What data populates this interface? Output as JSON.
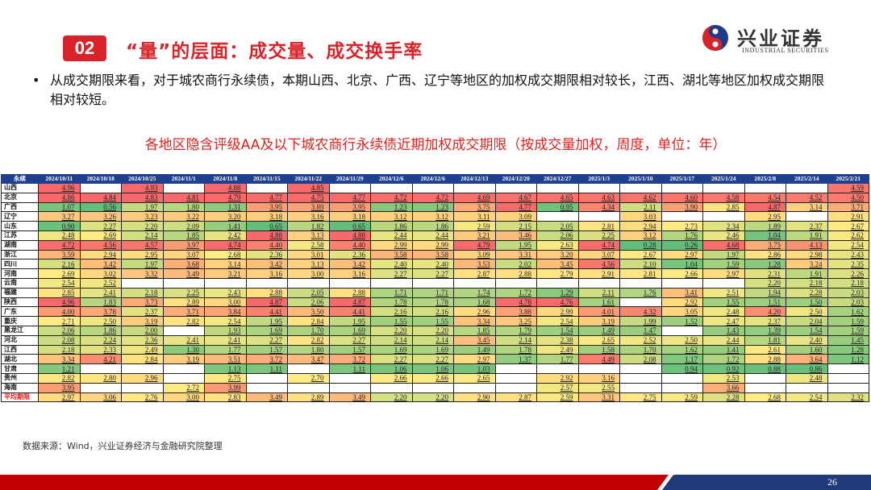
{
  "header": {
    "section_number": "02",
    "title": "“量”的层面：成交量、成交换手率",
    "logo_cn": "兴业证券",
    "logo_en": "INDUSTRIAL SECURITIES"
  },
  "bullet": {
    "marker": "•",
    "text": "从成交期限来看，对于城农商行永续债，本期山西、北京、广西、辽宁等地区的加权成交期限相对较长，江西、湖北等地区加权成交期限相对较短。"
  },
  "subtitle": "各地区隐含评级AA及以下城农商行永续债近期加权成交期限（按成交量加权，周度，单位：年）",
  "table": {
    "corner": "永续",
    "columns": [
      "2024/10/11",
      "2024/10/18",
      "2024/10/25",
      "2024/11/1",
      "2024/11/8",
      "2024/11/15",
      "2024/11/22",
      "2024/11/29",
      "2024/12/6",
      "2024/12/6",
      "2024/12/13",
      "2024/12/20",
      "2024/12/27",
      "2025/1/3",
      "2025/1/10",
      "2025/1/17",
      "2025/1/24",
      "2025/2/8",
      "2025/2/14",
      "2025/2/21"
    ],
    "rows": [
      {
        "region": "山西",
        "values": [
          "4.96",
          "",
          "4.93",
          "",
          "4.88",
          "",
          "4.85",
          "",
          "",
          "",
          "",
          "",
          "",
          "",
          "",
          "",
          "",
          "",
          "",
          "4.59"
        ]
      },
      {
        "region": "北京",
        "values": [
          "4.86",
          "4.84",
          "4.83",
          "4.81",
          "4.79",
          "4.77",
          "4.75",
          "4.77",
          "4.72",
          "4.72",
          "4.69",
          "4.67",
          "4.65",
          "4.63",
          "4.62",
          "4.60",
          "4.58",
          "4.54",
          "4.52",
          "4.50"
        ]
      },
      {
        "region": "广西",
        "values": [
          "1.07",
          "0.56",
          "1.97",
          "1.80",
          "1.31",
          "3.95",
          "3.89",
          "3.95",
          "1.23",
          "1.23",
          "3.75",
          "4.77",
          "0.95",
          "4.34",
          "2.11",
          "3.90",
          "2.85",
          "4.87",
          "3.14",
          "3.71"
        ]
      },
      {
        "region": "辽宁",
        "values": [
          "3.27",
          "3.26",
          "3.23",
          "3.22",
          "3.20",
          "3.18",
          "3.16",
          "3.18",
          "3.12",
          "3.12",
          "3.11",
          "3.09",
          "",
          "",
          "3.03",
          "",
          "",
          "2.95",
          "",
          "2.91"
        ]
      },
      {
        "region": "山东",
        "values": [
          "0.90",
          "2.27",
          "2.20",
          "2.09",
          "1.41",
          "0.65",
          "1.82",
          "0.65",
          "1.86",
          "1.86",
          "2.59",
          "2.15",
          "2.05",
          "2.81",
          "2.94",
          "2.73",
          "2.34",
          "1.89",
          "2.37",
          "2.67"
        ]
      },
      {
        "region": "江苏",
        "values": [
          "2.48",
          "2.69",
          "2.14",
          "1.85",
          "2.42",
          "4.88",
          "3.13",
          "4.88",
          "2.44",
          "2.44",
          "3.21",
          "3.46",
          "2.06",
          "2.25",
          "3.12",
          "1.76",
          "2.46",
          "1.04",
          "1.91",
          "2.62"
        ]
      },
      {
        "region": "湖南",
        "values": [
          "4.72",
          "4.56",
          "4.57",
          "3.97",
          "4.74",
          "4.40",
          "2.58",
          "4.40",
          "2.99",
          "2.99",
          "4.79",
          "1.95",
          "2.63",
          "4.74",
          "0.28",
          "0.26",
          "4.68",
          "3.75",
          "4.13",
          "2.54"
        ]
      },
      {
        "region": "浙江",
        "values": [
          "3.59",
          "2.94",
          "2.95",
          "3.07",
          "2.68",
          "2.36",
          "3.01",
          "2.36",
          "3.58",
          "3.58",
          "3.09",
          "3.31",
          "3.20",
          "3.07",
          "2.67",
          "2.97",
          "1.97",
          "2.86",
          "2.98",
          "2.43"
        ]
      },
      {
        "region": "四川",
        "values": [
          "2.16",
          "3.42",
          "1.97",
          "3.68",
          "3.14",
          "3.42",
          "3.13",
          "3.42",
          "2.40",
          "2.40",
          "3.53",
          "2.02",
          "3.45",
          "4.56",
          "2.10",
          "1.04",
          "1.59",
          "1.28",
          "3.24",
          "2.35"
        ]
      },
      {
        "region": "河南",
        "values": [
          "2.69",
          "3.02",
          "3.32",
          "3.49",
          "3.21",
          "3.16",
          "3.00",
          "3.16",
          "2.27",
          "2.27",
          "2.87",
          "2.88",
          "2.79",
          "2.91",
          "2.81",
          "2.66",
          "2.97",
          "2.31",
          "1.91",
          "2.26"
        ]
      },
      {
        "region": "云南",
        "values": [
          "2.54",
          "2.52",
          "",
          "",
          "",
          "",
          "",
          "",
          "",
          "",
          "",
          "",
          "",
          "",
          "",
          "",
          "",
          "2.20",
          "2.18",
          "2.18"
        ]
      },
      {
        "region": "福建",
        "values": [
          "2.85",
          "2.41",
          "2.18",
          "2.25",
          "2.43",
          "2.88",
          "2.05",
          "2.88",
          "1.71",
          "1.71",
          "1.74",
          "1.72",
          "1.29",
          "2.11",
          "1.76",
          "3.41",
          "2.51",
          "1.94",
          "2.28",
          "2.03"
        ]
      },
      {
        "region": "陕西",
        "values": [
          "4.96",
          "1.83",
          "3.73",
          "2.89",
          "3.00",
          "4.87",
          "2.06",
          "4.87",
          "1.78",
          "1.78",
          "1.68",
          "4.78",
          "4.76",
          "1.61",
          "",
          "2.92",
          "1.55",
          "1.51",
          "1.50",
          "2.03"
        ]
      },
      {
        "region": "广东",
        "values": [
          "4.00",
          "3.78",
          "2.37",
          "3.71",
          "3.84",
          "4.41",
          "3.50",
          "4.41",
          "2.16",
          "2.16",
          "2.96",
          "3.88",
          "2.99",
          "4.01",
          "4.32",
          "3.05",
          "2.48",
          "4.20",
          "2.50",
          "1.62"
        ]
      },
      {
        "region": "重庆",
        "values": [
          "2.71",
          "2.50",
          "3.19",
          "2.82",
          "2.54",
          "1.95",
          "2.84",
          "1.95",
          "1.55",
          "1.55",
          "3.34",
          "3.25",
          "2.54",
          "3.19",
          "1.99",
          "1.52",
          "2.47",
          "2.37",
          "2.04",
          "1.59"
        ]
      },
      {
        "region": "黑龙江",
        "values": [
          "2.06",
          "1.86",
          "2.00",
          "",
          "1.93",
          "1.69",
          "1.70",
          "1.69",
          "2.20",
          "2.20",
          "1.85",
          "1.79",
          "1.54",
          "1.49",
          "1.47",
          "",
          "1.43",
          "1.39",
          "1.54",
          "1.59"
        ]
      },
      {
        "region": "河北",
        "values": [
          "2.08",
          "2.24",
          "2.36",
          "2.41",
          "2.41",
          "2.27",
          "2.82",
          "2.27",
          "2.14",
          "2.14",
          "3.45",
          "2.14",
          "2.38",
          "2.65",
          "2.52",
          "2.50",
          "2.44",
          "1.81",
          "2.40",
          "1.45"
        ]
      },
      {
        "region": "江西",
        "values": [
          "2.18",
          "2.33",
          "2.49",
          "1.30",
          "1.77",
          "1.57",
          "1.80",
          "1.57",
          "1.69",
          "1.69",
          "1.49",
          "1.78",
          "2.49",
          "1.58",
          "1.70",
          "1.62",
          "1.41",
          "2.61",
          "1.60",
          "1.28"
        ]
      },
      {
        "region": "湖北",
        "values": [
          "3.34",
          "4.21",
          "2.84",
          "3.19",
          "3.51",
          "3.72",
          "3.47",
          "3.72",
          "2.27",
          "2.27",
          "2.97",
          "1.37",
          "1.77",
          "4.49",
          "2.08",
          "1.17",
          "1.72",
          "2.88",
          "3.64",
          "1.12"
        ]
      },
      {
        "region": "甘肃",
        "values": [
          "1.21",
          "",
          "",
          "",
          "1.13",
          "1.11",
          "",
          "1.11",
          "1.06",
          "1.06",
          "1.03",
          "",
          "",
          "",
          "",
          "0.94",
          "0.92",
          "0.88",
          "0.86",
          ""
        ]
      },
      {
        "region": "贵州",
        "values": [
          "2.82",
          "2.80",
          "2.96",
          "",
          "2.75",
          "",
          "2.70",
          "",
          "2.66",
          "2.66",
          "2.65",
          "",
          "2.92",
          "3.16",
          "",
          "",
          "2.53",
          "",
          "2.48",
          ""
        ]
      },
      {
        "region": "海南",
        "values": [
          "3.95",
          "",
          "",
          "2.72",
          "3.99",
          "",
          "",
          "",
          "",
          "",
          "",
          "",
          "2.57",
          "2.55",
          "",
          "",
          "3.66",
          "",
          "",
          ""
        ]
      },
      {
        "region": "平均期限",
        "avg": true,
        "values": [
          "2.97",
          "3.06",
          "2.76",
          "3.00",
          "2.83",
          "3.49",
          "2.89",
          "3.49",
          "2.20",
          "2.20",
          "2.90",
          "2.87",
          "2.59",
          "3.31",
          "2.75",
          "2.59",
          "2.28",
          "2.68",
          "2.54",
          "2.32"
        ]
      }
    ]
  },
  "colors": {
    "accent_red": "#d9232a",
    "header_blue": "#1f3f8f",
    "scale_low": "#63be7b",
    "scale_mid": "#ffeb84",
    "scale_high": "#f8696b"
  },
  "source": "数据来源：Wind，兴业证券经济与金融研究院整理",
  "footer": {
    "page_number": "26"
  }
}
